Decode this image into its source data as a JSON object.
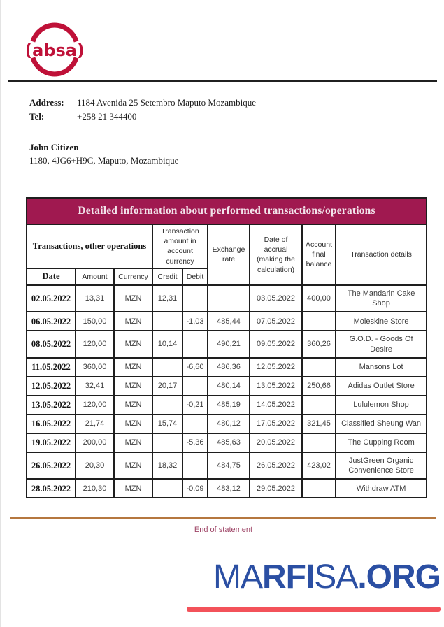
{
  "brand": {
    "logo_text": "(absa)",
    "brand_color": "#bf1138"
  },
  "contact": {
    "address_label": "Address:",
    "address_value": "1184 Avenida 25 Setembro Maputo Mozambique",
    "tel_label": "Tel:",
    "tel_value": "+258 21 344400"
  },
  "customer": {
    "name": "John Citizen",
    "address": "1180, 4JG6+H9C, Maputo, Mozambique"
  },
  "table": {
    "title": "Detailed information about performed transactions/operations",
    "group_headers": {
      "transactions": "Transactions, other operations",
      "amount_in_currency": "Transaction amount in account currency",
      "exchange_rate": "Exchange rate",
      "accrual_date": "Date of accrual (making the calculation)",
      "final_balance": "Account final balance",
      "details": "Transaction details"
    },
    "sub_headers": {
      "date": "Date",
      "amount": "Amount",
      "currency": "Currency",
      "credit": "Credit",
      "debit": "Debit"
    },
    "rows": [
      {
        "date": "02.05.2022",
        "amount": "13,31",
        "currency": "MZN",
        "credit": "12,31",
        "debit": "",
        "rate": "",
        "accrual": "03.05.2022",
        "balance": "400,00",
        "details": "The Mandarin Cake Shop"
      },
      {
        "date": "06.05.2022",
        "amount": "150,00",
        "currency": "MZN",
        "credit": "",
        "debit": "-1,03",
        "rate": "485,44",
        "accrual": "07.05.2022",
        "balance": "",
        "details": "Moleskine Store"
      },
      {
        "date": "08.05.2022",
        "amount": "120,00",
        "currency": "MZN",
        "credit": "10,14",
        "debit": "",
        "rate": "490,21",
        "accrual": "09.05.2022",
        "balance": "360,26",
        "details": "G.O.D. - Goods Of Desire"
      },
      {
        "date": "11.05.2022",
        "amount": "360,00",
        "currency": "MZN",
        "credit": "",
        "debit": "-6,60",
        "rate": "486,36",
        "accrual": "12.05.2022",
        "balance": "",
        "details": "Mansons Lot"
      },
      {
        "date": "12.05.2022",
        "amount": "32,41",
        "currency": "MZN",
        "credit": "20,17",
        "debit": "",
        "rate": "480,14",
        "accrual": "13.05.2022",
        "balance": "250,66",
        "details": "Adidas Outlet Store"
      },
      {
        "date": "13.05.2022",
        "amount": "120,00",
        "currency": "MZN",
        "credit": "",
        "debit": "-0,21",
        "rate": "485,19",
        "accrual": "14.05.2022",
        "balance": "",
        "details": "Lululemon Shop"
      },
      {
        "date": "16.05.2022",
        "amount": "21,74",
        "currency": "MZN",
        "credit": "15,74",
        "debit": "",
        "rate": "480,12",
        "accrual": "17.05.2022",
        "balance": "321,45",
        "details": "Classified Sheung Wan"
      },
      {
        "date": "19.05.2022",
        "amount": "200,00",
        "currency": "MZN",
        "credit": "",
        "debit": "-5,36",
        "rate": "485,63",
        "accrual": "20.05.2022",
        "balance": "",
        "details": "The Cupping Room"
      },
      {
        "date": "26.05.2022",
        "amount": "20,30",
        "currency": "MZN",
        "credit": "18,32",
        "debit": "",
        "rate": "484,75",
        "accrual": "26.05.2022",
        "balance": "423,02",
        "details": "JustGreen Organic Convenience Store"
      },
      {
        "date": "28.05.2022",
        "amount": "210,30",
        "currency": "MZN",
        "credit": "",
        "debit": "-0,09",
        "rate": "483,12",
        "accrual": "29.05.2022",
        "balance": "",
        "details": "Withdraw ATM"
      }
    ]
  },
  "footer": {
    "end_text": "End of statement",
    "watermark_part1": "MA",
    "watermark_part2": "RFI",
    "watermark_part3": "SA",
    "watermark_part4": ".ORG",
    "watermark_color": "#2b4fa3",
    "underline_color": "#f3525a"
  }
}
